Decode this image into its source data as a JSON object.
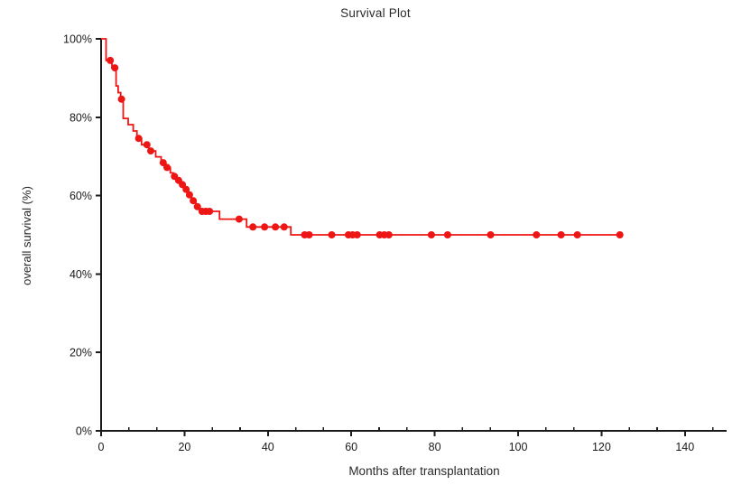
{
  "chart": {
    "title": "Survival Plot",
    "xlabel": "Months after transplantation",
    "ylabel": "overall survival (%)"
  },
  "chart_data": {
    "type": "line",
    "subtype": "kaplan-meier-step",
    "title": "Survival Plot",
    "xlabel": "Months after transplantation",
    "ylabel": "overall survival (%)",
    "xlim": [
      0,
      150
    ],
    "ylim": [
      0,
      100
    ],
    "grid": false,
    "legend": "none",
    "colors": {
      "curve": "#ee1515",
      "axis": "#1a1a1a",
      "text": "#1a1a1a",
      "background": "#ffffff"
    },
    "x_ticks": [
      {
        "value": 0,
        "label": "0"
      },
      {
        "value": 20,
        "label": "20"
      },
      {
        "value": 40,
        "label": "40"
      },
      {
        "value": 60,
        "label": "60"
      },
      {
        "value": 80,
        "label": "80"
      },
      {
        "value": 100,
        "label": "100"
      },
      {
        "value": 120,
        "label": "120"
      },
      {
        "value": 140,
        "label": "140"
      }
    ],
    "x_minor_ticks": [
      6.67,
      13.33,
      26.67,
      33.33,
      46.67,
      53.33,
      66.67,
      73.33,
      86.67,
      93.33,
      106.67,
      113.33,
      126.67,
      133.33,
      146.67
    ],
    "y_ticks": [
      {
        "value": 0,
        "label": "0%"
      },
      {
        "value": 20,
        "label": "20%"
      },
      {
        "value": 40,
        "label": "40%"
      },
      {
        "value": 60,
        "label": "60%"
      },
      {
        "value": 80,
        "label": "80%"
      },
      {
        "value": 100,
        "label": "100%"
      }
    ],
    "series": [
      {
        "name": "overall survival",
        "style": "step-post",
        "steps": [
          [
            0,
            100
          ],
          [
            1.2,
            94.5
          ],
          [
            2.6,
            92.6
          ],
          [
            3.6,
            88.0
          ],
          [
            4.1,
            86.3
          ],
          [
            4.7,
            84.6
          ],
          [
            5.3,
            79.7
          ],
          [
            6.5,
            78.1
          ],
          [
            7.7,
            76.5
          ],
          [
            8.6,
            74.6
          ],
          [
            9.7,
            73.0
          ],
          [
            11.4,
            71.4
          ],
          [
            13.1,
            69.9
          ],
          [
            14.4,
            68.4
          ],
          [
            15.4,
            67.2
          ],
          [
            16.6,
            65.8
          ],
          [
            17.3,
            64.9
          ],
          [
            18.2,
            63.9
          ],
          [
            19.1,
            62.8
          ],
          [
            19.9,
            61.6
          ],
          [
            20.8,
            60.2
          ],
          [
            21.7,
            58.7
          ],
          [
            22.7,
            57.2
          ],
          [
            23.6,
            56.0
          ],
          [
            28.4,
            54.0
          ],
          [
            34.9,
            52.0
          ],
          [
            45.5,
            50.0
          ]
        ],
        "curve_end": 124.4,
        "censor_marks": [
          [
            2.2,
            94.5
          ],
          [
            3.3,
            92.6
          ],
          [
            4.9,
            84.6
          ],
          [
            9.0,
            74.6
          ],
          [
            11.0,
            73.0
          ],
          [
            11.9,
            71.4
          ],
          [
            14.9,
            68.4
          ],
          [
            15.8,
            67.2
          ],
          [
            17.6,
            64.9
          ],
          [
            18.6,
            63.9
          ],
          [
            19.5,
            62.8
          ],
          [
            20.4,
            61.6
          ],
          [
            21.2,
            60.2
          ],
          [
            22.1,
            58.7
          ],
          [
            23.1,
            57.2
          ],
          [
            24.2,
            56.0
          ],
          [
            25.1,
            56.0
          ],
          [
            26.0,
            56.0
          ],
          [
            33.1,
            54.0
          ],
          [
            36.4,
            52.0
          ],
          [
            39.2,
            52.0
          ],
          [
            41.8,
            52.0
          ],
          [
            43.9,
            52.0
          ],
          [
            48.8,
            50.0
          ],
          [
            49.9,
            50.0
          ],
          [
            55.3,
            50.0
          ],
          [
            59.3,
            50.0
          ],
          [
            60.3,
            50.0
          ],
          [
            61.4,
            50.0
          ],
          [
            66.8,
            50.0
          ],
          [
            67.9,
            50.0
          ],
          [
            69.0,
            50.0
          ],
          [
            79.2,
            50.0
          ],
          [
            83.1,
            50.0
          ],
          [
            93.4,
            50.0
          ],
          [
            104.4,
            50.0
          ],
          [
            110.3,
            50.0
          ],
          [
            114.2,
            50.0
          ],
          [
            124.4,
            50.0
          ]
        ]
      }
    ]
  }
}
